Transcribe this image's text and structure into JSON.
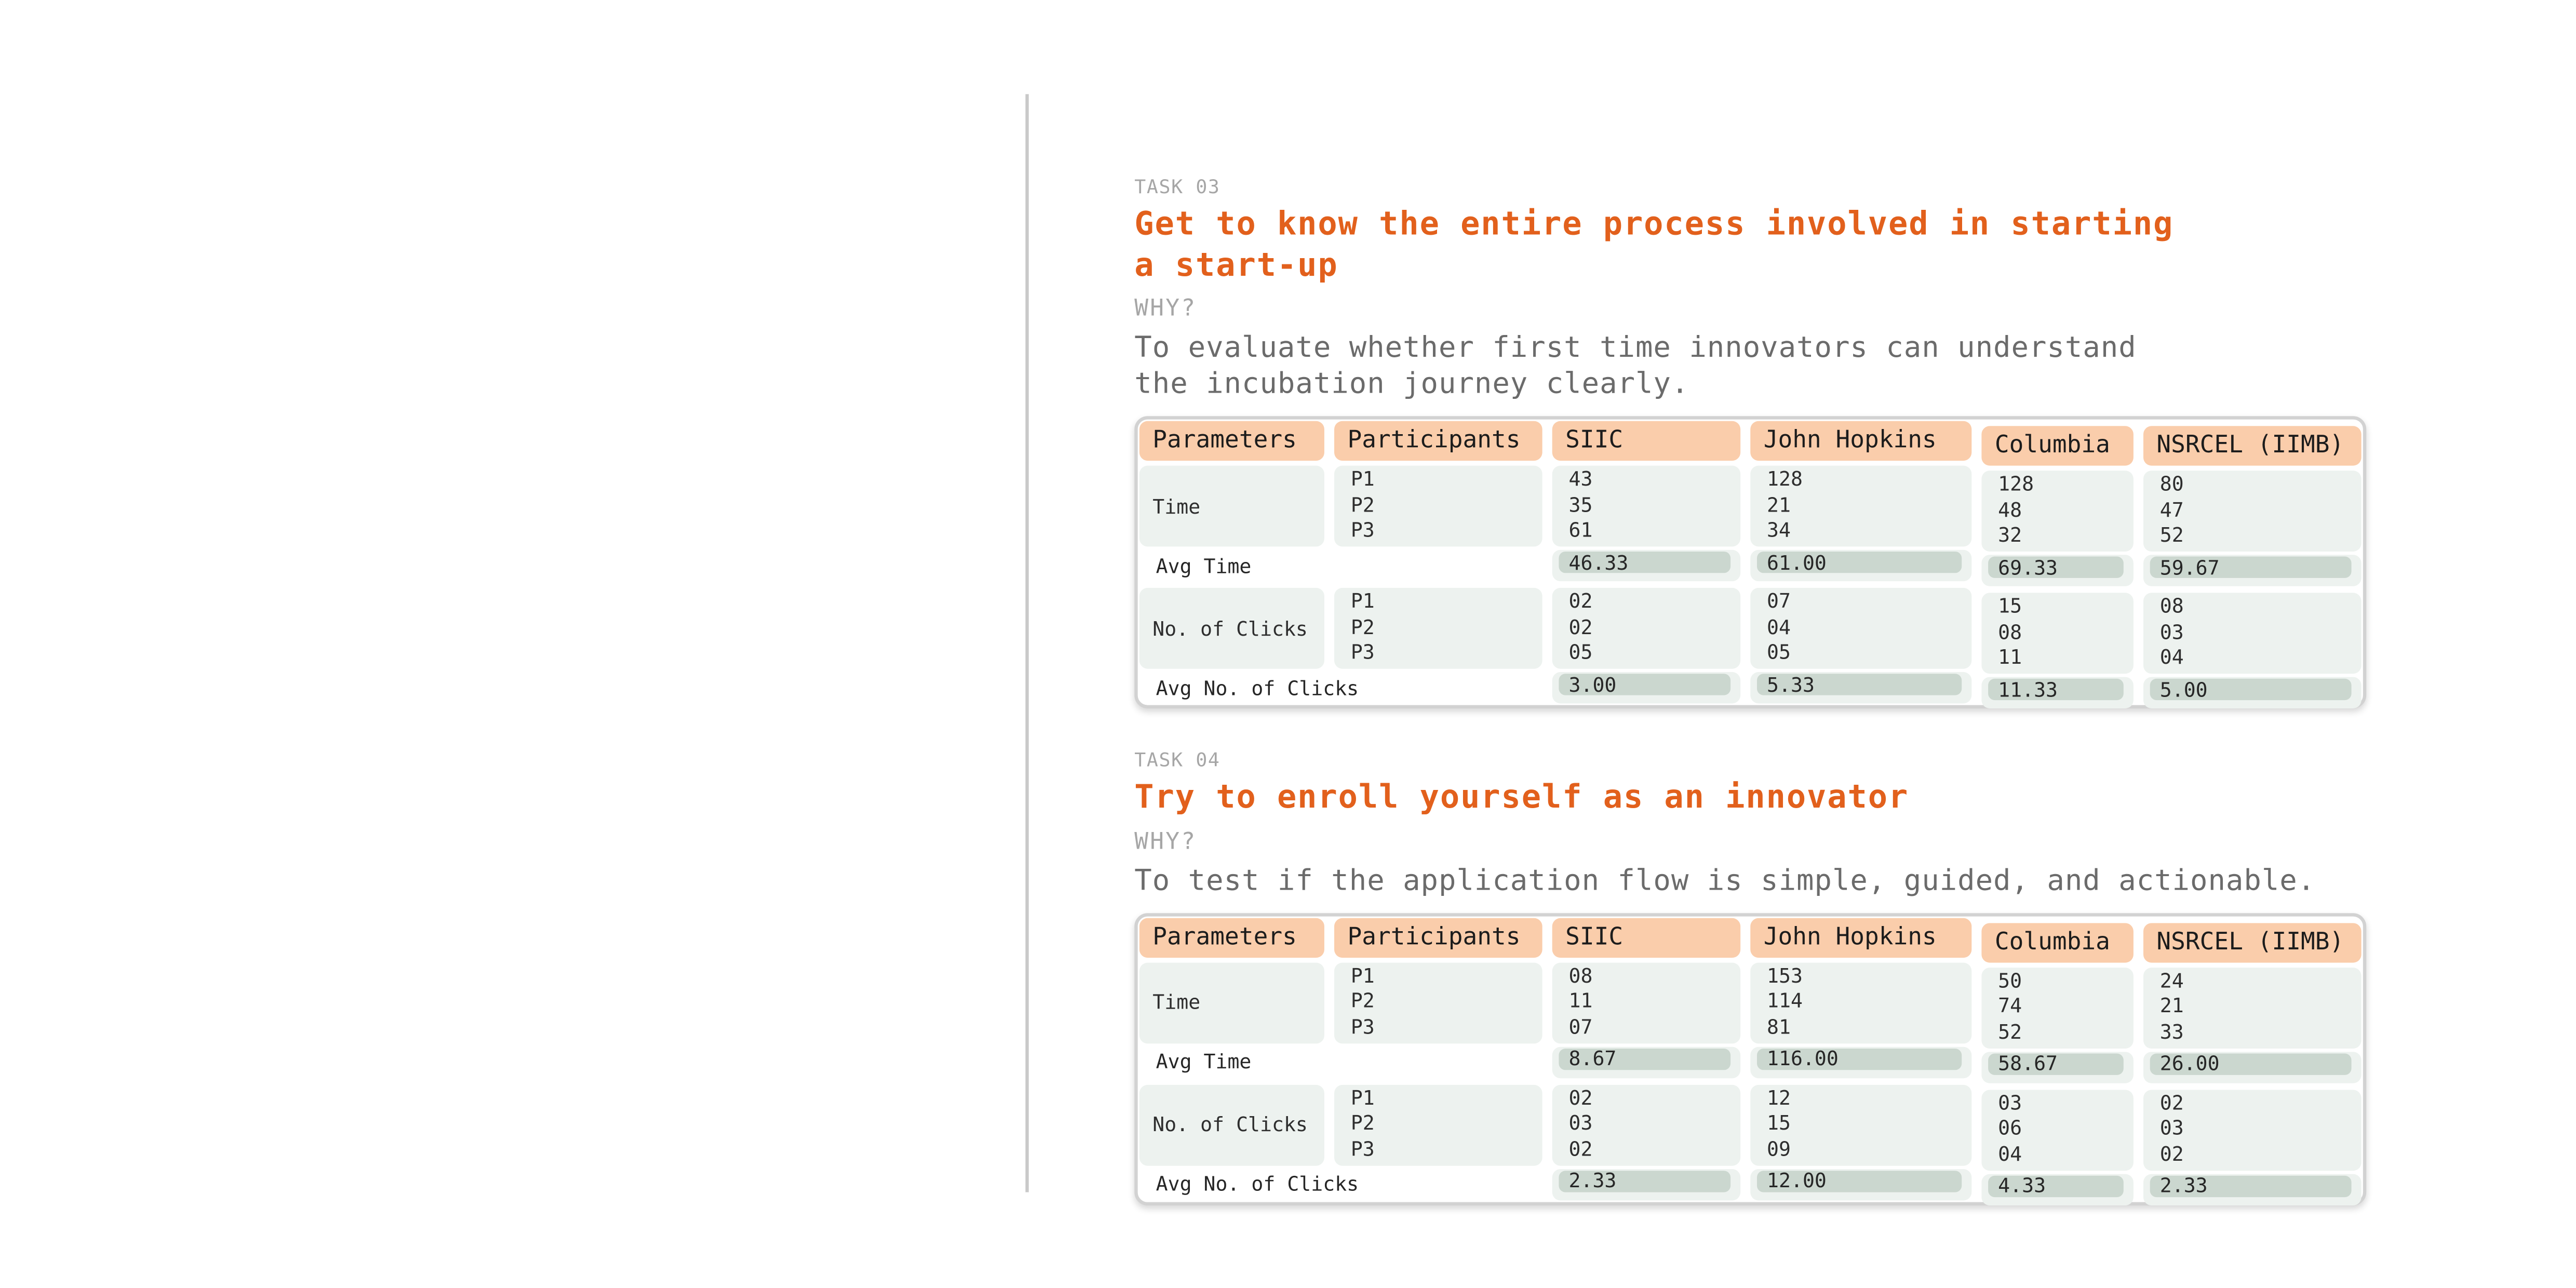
{
  "colors": {
    "accent": "#E2601C",
    "header-peach": "#FACDAB",
    "cell-light": "#EDF2EF",
    "pill-sage": "#CBD7CF",
    "border-gray": "#D2D2D2",
    "label-gray": "#A6A6A6",
    "body-gray": "#6B6B6B",
    "text-dark": "#2E2E2E",
    "divider-gray": "#C9C9C9"
  },
  "tasks": [
    {
      "task_label": "TASK 03",
      "title": "Get to know the entire process involved in starting\na start-up",
      "why_label": "WHY?",
      "why_text": "To evaluate whether first time innovators can understand\nthe incubation journey clearly.",
      "table": {
        "columns": [
          "Parameters",
          "Participants",
          "SIIC",
          "John Hopkins",
          "Columbia",
          "NSRCEL (IIMB)"
        ],
        "sections": [
          {
            "parameter": "Time",
            "participants": [
              "P1",
              "P2",
              "P3"
            ],
            "values": [
              [
                "43",
                "35",
                "61"
              ],
              [
                "128",
                "21",
                "34"
              ],
              [
                "128",
                "48",
                "32"
              ],
              [
                "80",
                "47",
                "52"
              ]
            ],
            "avg_label": "Avg Time",
            "avg_values": [
              "46.33",
              "61.00",
              "69.33",
              "59.67"
            ]
          },
          {
            "parameter": "No. of Clicks",
            "participants": [
              "P1",
              "P2",
              "P3"
            ],
            "values": [
              [
                "02",
                "02",
                "05"
              ],
              [
                "07",
                "04",
                "05"
              ],
              [
                "15",
                "08",
                "11"
              ],
              [
                "08",
                "03",
                "04"
              ]
            ],
            "avg_label": "Avg No. of Clicks",
            "avg_values": [
              "3.00",
              "5.33",
              "11.33",
              "5.00"
            ]
          }
        ]
      }
    },
    {
      "task_label": "TASK 04",
      "title": "Try to enroll yourself as an innovator",
      "why_label": "WHY?",
      "why_text": "To test if the application flow is simple, guided, and actionable.",
      "table": {
        "columns": [
          "Parameters",
          "Participants",
          "SIIC",
          "John Hopkins",
          "Columbia",
          "NSRCEL (IIMB)"
        ],
        "sections": [
          {
            "parameter": "Time",
            "participants": [
              "P1",
              "P2",
              "P3"
            ],
            "values": [
              [
                "08",
                "11",
                "07"
              ],
              [
                "153",
                "114",
                "81"
              ],
              [
                "50",
                "74",
                "52"
              ],
              [
                "24",
                "21",
                "33"
              ]
            ],
            "avg_label": "Avg Time",
            "avg_values": [
              "8.67",
              "116.00",
              "58.67",
              "26.00"
            ]
          },
          {
            "parameter": "No. of Clicks",
            "participants": [
              "P1",
              "P2",
              "P3"
            ],
            "values": [
              [
                "02",
                "03",
                "02"
              ],
              [
                "12",
                "15",
                "09"
              ],
              [
                "03",
                "06",
                "04"
              ],
              [
                "02",
                "03",
                "02"
              ]
            ],
            "avg_label": "Avg No. of Clicks",
            "avg_values": [
              "2.33",
              "12.00",
              "4.33",
              "2.33"
            ]
          }
        ]
      }
    }
  ]
}
